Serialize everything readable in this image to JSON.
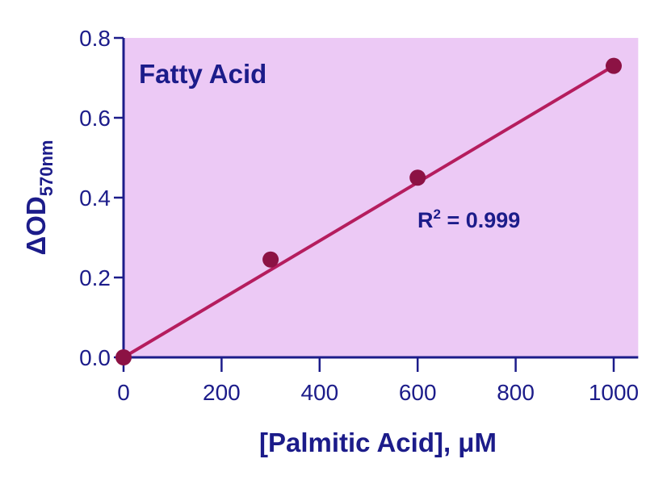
{
  "chart_data": {
    "type": "scatter",
    "title": "Fatty Acid",
    "xlabel": "[Palmitic Acid], μM",
    "ylabel_main": "ΔOD",
    "ylabel_sub": "570nm",
    "xlim": [
      0,
      1050
    ],
    "ylim": [
      0,
      0.8
    ],
    "xticks": [
      "0",
      "200",
      "400",
      "600",
      "800",
      "1000"
    ],
    "yticks": [
      "0.0",
      "0.2",
      "0.4",
      "0.6",
      "0.8"
    ],
    "x": [
      0,
      300,
      600,
      1000
    ],
    "y": [
      0.0,
      0.245,
      0.45,
      0.73
    ],
    "fit_line": {
      "type": "linear",
      "x": [
        0,
        1000
      ],
      "y": [
        0.0,
        0.73
      ]
    },
    "annotation": {
      "label": "R",
      "sup": "2",
      "value": " = 0.999"
    },
    "grid": false,
    "colors": {
      "plot_background": "#ecc9f5",
      "axis": "#1c1c8a",
      "line": "#b51d5e",
      "points": "#8c1244"
    }
  }
}
